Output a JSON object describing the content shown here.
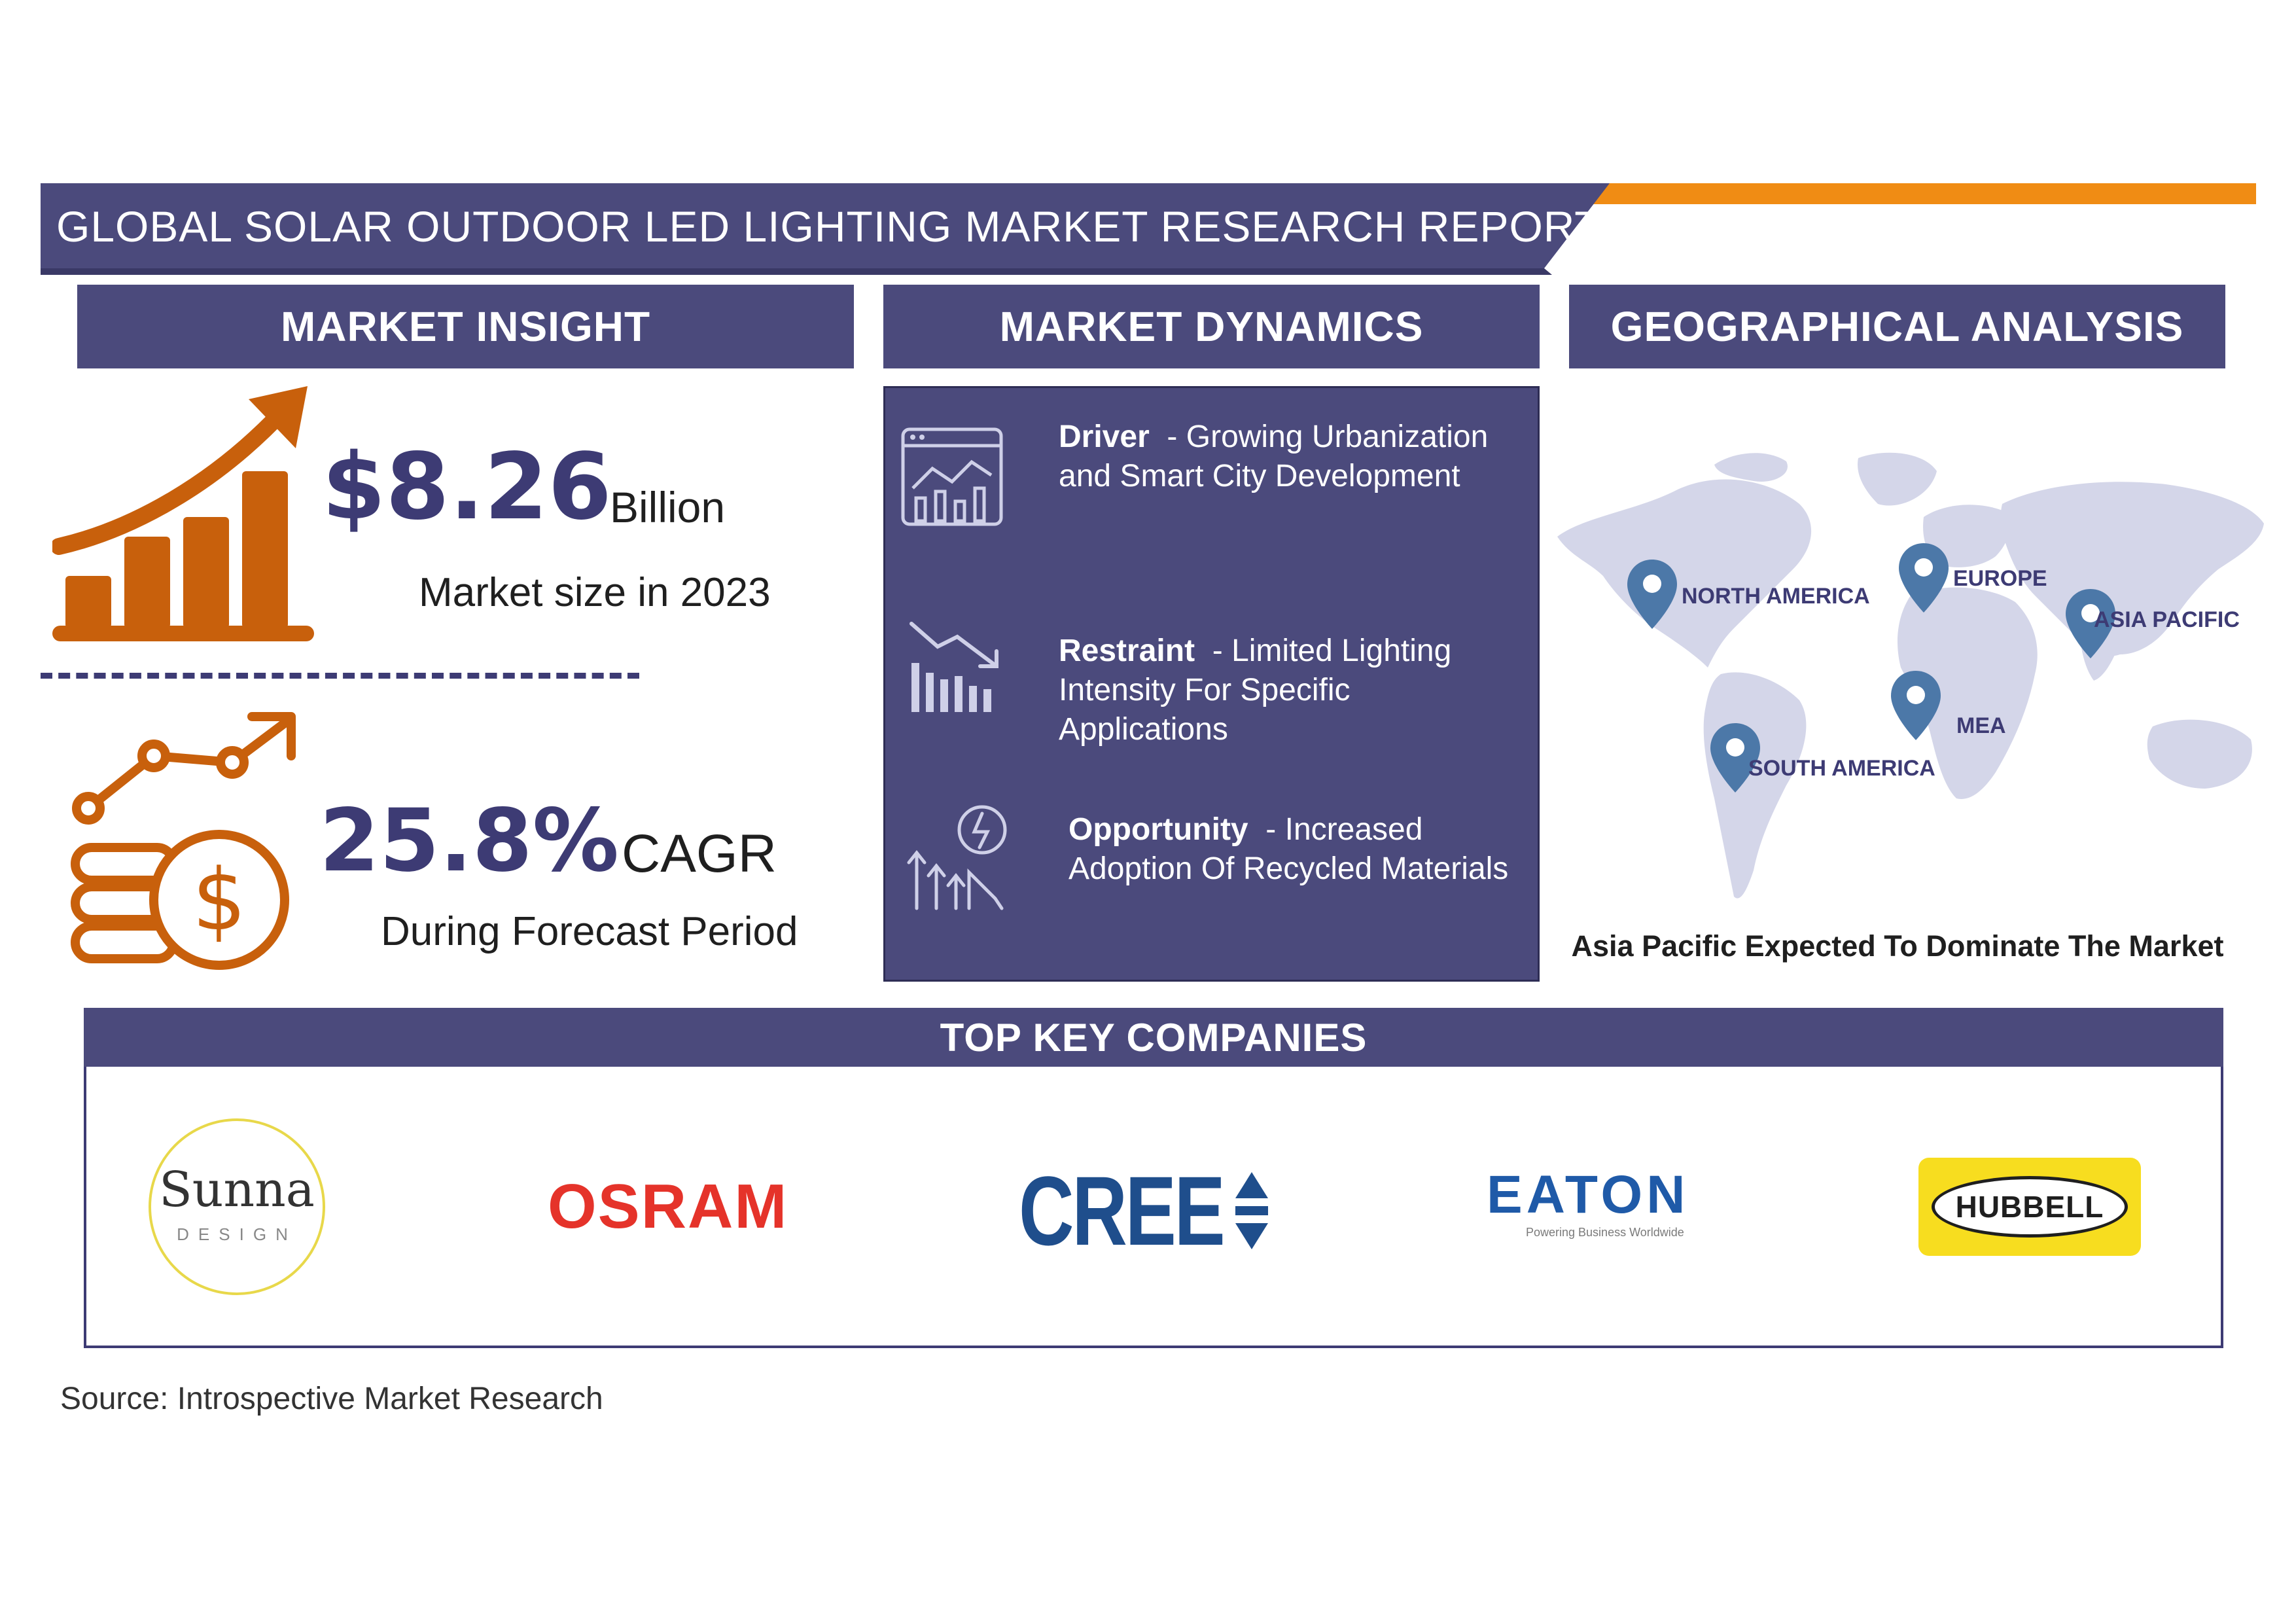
{
  "header": {
    "title": "GLOBAL SOLAR OUTDOOR LED LIGHTING MARKET RESEARCH REPORT",
    "colors": {
      "navy": "#4b4a7c",
      "orange": "#f08c14"
    }
  },
  "market_insight": {
    "heading": "MARKET INSIGHT",
    "market_size_value": "$8.26",
    "market_size_unit": "Billion",
    "market_size_label": "Market size in 2023",
    "cagr_value": "25.8%",
    "cagr_unit": "CAGR",
    "cagr_label": "During Forecast Period",
    "icons": [
      "growth-bar-chart-icon",
      "coin-growth-icon"
    ],
    "accent_color": "#c8600c"
  },
  "market_dynamics": {
    "heading": "MARKET DYNAMICS",
    "items": [
      {
        "title": "Driver",
        "separator": "- ",
        "text": "Growing Urbanization and Smart City Development",
        "icon": "analytics-dashboard-icon"
      },
      {
        "title": "Restraint",
        "separator": "- ",
        "text": "Limited Lighting Intensity For Specific Applications",
        "icon": "declining-chart-icon"
      },
      {
        "title": "Opportunity",
        "separator": "- ",
        "text": "Increased Adoption Of Recycled Materials",
        "icon": "growth-idea-icon"
      }
    ]
  },
  "geographical_analysis": {
    "heading": "GEOGRAPHICAL ANALYSIS",
    "regions": [
      "NORTH AMERICA",
      "EUROPE",
      "ASIA PACIFIC",
      "MEA",
      "SOUTH AMERICA"
    ],
    "caption": "Asia Pacific Expected To Dominate The Market"
  },
  "companies": {
    "heading": "TOP KEY COMPANIES",
    "logos": [
      {
        "name": "Sunna",
        "sub": "DESIGN"
      },
      {
        "name": "OSRAM"
      },
      {
        "name": "CREE"
      },
      {
        "name": "EATON",
        "sub": "Powering Business Worldwide"
      },
      {
        "name": "HUBBELL"
      }
    ]
  },
  "source": "Source: Introspective Market Research"
}
